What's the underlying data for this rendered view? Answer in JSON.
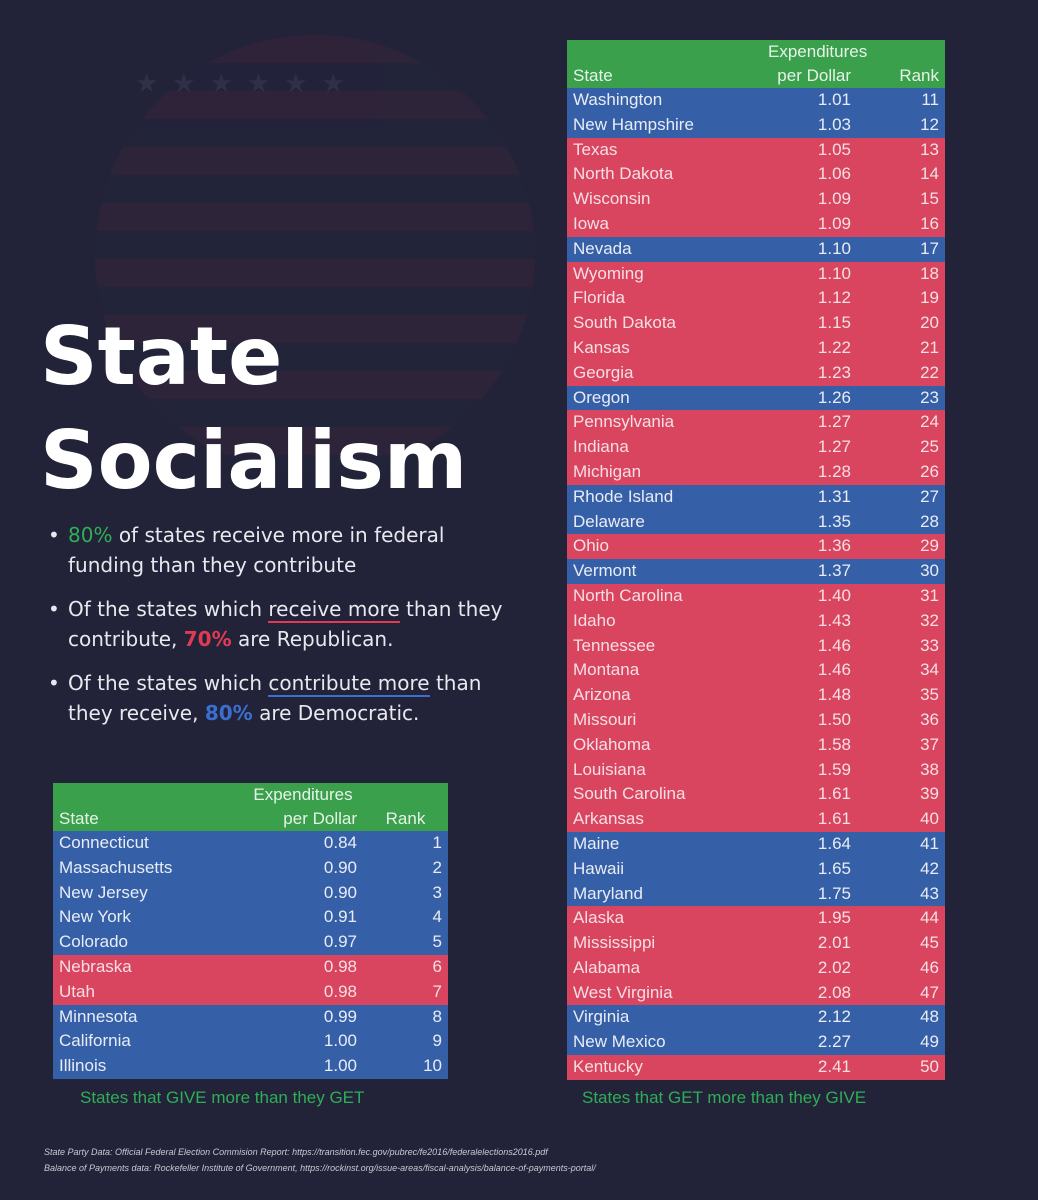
{
  "title_line1": "State",
  "title_line2": "Socialism",
  "bullets": {
    "b1_pct": "80%",
    "b1_text": "of states receive more in federal funding than they contribute",
    "b2_pre": "Of the states which",
    "b2_ul": "receive more",
    "b2_mid": "than they contribute,",
    "b2_pct": "70%",
    "b2_post": "are Republican.",
    "b3_pre": "Of the states which",
    "b3_ul": "contribute more",
    "b3_mid": "than they receive,",
    "b3_pct": "80%",
    "b3_post": "are Democratic."
  },
  "table_headers": {
    "state": "State",
    "exp_line1": "Expenditures",
    "exp_line2": "per Dollar",
    "rank": "Rank"
  },
  "give_caption": "States that GIVE more than they GET",
  "get_caption": "States that GET more than they GIVE",
  "colors": {
    "democrat": "#3560a8",
    "republican": "#d9445e",
    "header": "#3aa04c"
  },
  "give_states": [
    {
      "state": "Connecticut",
      "value": "0.84",
      "rank": "1",
      "party": "D"
    },
    {
      "state": "Massachusetts",
      "value": "0.90",
      "rank": "2",
      "party": "D"
    },
    {
      "state": "New Jersey",
      "value": "0.90",
      "rank": "3",
      "party": "D"
    },
    {
      "state": "New York",
      "value": "0.91",
      "rank": "4",
      "party": "D"
    },
    {
      "state": "Colorado",
      "value": "0.97",
      "rank": "5",
      "party": "D"
    },
    {
      "state": "Nebraska",
      "value": "0.98",
      "rank": "6",
      "party": "R"
    },
    {
      "state": "Utah",
      "value": "0.98",
      "rank": "7",
      "party": "R"
    },
    {
      "state": "Minnesota",
      "value": "0.99",
      "rank": "8",
      "party": "D"
    },
    {
      "state": "California",
      "value": "1.00",
      "rank": "9",
      "party": "D"
    },
    {
      "state": "Illinois",
      "value": "1.00",
      "rank": "10",
      "party": "D"
    }
  ],
  "get_states": [
    {
      "state": "Washington",
      "value": "1.01",
      "rank": "11",
      "party": "D"
    },
    {
      "state": "New Hampshire",
      "value": "1.03",
      "rank": "12",
      "party": "D"
    },
    {
      "state": "Texas",
      "value": "1.05",
      "rank": "13",
      "party": "R"
    },
    {
      "state": "North Dakota",
      "value": "1.06",
      "rank": "14",
      "party": "R"
    },
    {
      "state": "Wisconsin",
      "value": "1.09",
      "rank": "15",
      "party": "R"
    },
    {
      "state": "Iowa",
      "value": "1.09",
      "rank": "16",
      "party": "R"
    },
    {
      "state": "Nevada",
      "value": "1.10",
      "rank": "17",
      "party": "D"
    },
    {
      "state": "Wyoming",
      "value": "1.10",
      "rank": "18",
      "party": "R"
    },
    {
      "state": "Florida",
      "value": "1.12",
      "rank": "19",
      "party": "R"
    },
    {
      "state": "South Dakota",
      "value": "1.15",
      "rank": "20",
      "party": "R"
    },
    {
      "state": "Kansas",
      "value": "1.22",
      "rank": "21",
      "party": "R"
    },
    {
      "state": "Georgia",
      "value": "1.23",
      "rank": "22",
      "party": "R"
    },
    {
      "state": "Oregon",
      "value": "1.26",
      "rank": "23",
      "party": "D"
    },
    {
      "state": "Pennsylvania",
      "value": "1.27",
      "rank": "24",
      "party": "R"
    },
    {
      "state": "Indiana",
      "value": "1.27",
      "rank": "25",
      "party": "R"
    },
    {
      "state": "Michigan",
      "value": "1.28",
      "rank": "26",
      "party": "R"
    },
    {
      "state": "Rhode Island",
      "value": "1.31",
      "rank": "27",
      "party": "D"
    },
    {
      "state": "Delaware",
      "value": "1.35",
      "rank": "28",
      "party": "D"
    },
    {
      "state": "Ohio",
      "value": "1.36",
      "rank": "29",
      "party": "R"
    },
    {
      "state": "Vermont",
      "value": "1.37",
      "rank": "30",
      "party": "D"
    },
    {
      "state": "North Carolina",
      "value": "1.40",
      "rank": "31",
      "party": "R"
    },
    {
      "state": "Idaho",
      "value": "1.43",
      "rank": "32",
      "party": "R"
    },
    {
      "state": "Tennessee",
      "value": "1.46",
      "rank": "33",
      "party": "R"
    },
    {
      "state": "Montana",
      "value": "1.46",
      "rank": "34",
      "party": "R"
    },
    {
      "state": "Arizona",
      "value": "1.48",
      "rank": "35",
      "party": "R"
    },
    {
      "state": "Missouri",
      "value": "1.50",
      "rank": "36",
      "party": "R"
    },
    {
      "state": "Oklahoma",
      "value": "1.58",
      "rank": "37",
      "party": "R"
    },
    {
      "state": "Louisiana",
      "value": "1.59",
      "rank": "38",
      "party": "R"
    },
    {
      "state": "South Carolina",
      "value": "1.61",
      "rank": "39",
      "party": "R"
    },
    {
      "state": "Arkansas",
      "value": "1.61",
      "rank": "40",
      "party": "R"
    },
    {
      "state": "Maine",
      "value": "1.64",
      "rank": "41",
      "party": "D"
    },
    {
      "state": "Hawaii",
      "value": "1.65",
      "rank": "42",
      "party": "D"
    },
    {
      "state": "Maryland",
      "value": "1.75",
      "rank": "43",
      "party": "D"
    },
    {
      "state": "Alaska",
      "value": "1.95",
      "rank": "44",
      "party": "R"
    },
    {
      "state": "Mississippi",
      "value": "2.01",
      "rank": "45",
      "party": "R"
    },
    {
      "state": "Alabama",
      "value": "2.02",
      "rank": "46",
      "party": "R"
    },
    {
      "state": "West Virginia",
      "value": "2.08",
      "rank": "47",
      "party": "R"
    },
    {
      "state": "Virginia",
      "value": "2.12",
      "rank": "48",
      "party": "D"
    },
    {
      "state": "New Mexico",
      "value": "2.27",
      "rank": "49",
      "party": "D"
    },
    {
      "state": "Kentucky",
      "value": "2.41",
      "rank": "50",
      "party": "R"
    }
  ],
  "sources": {
    "line1": "State Party Data: Official Federal Election Commision Report: https://transition.fec.gov/pubrec/fe2016/federalelections2016.pdf",
    "line2": "Balance of Payments data: Rockefeller Institute of Government, https://rockinst.org/issue-areas/fiscal-analysis/balance-of-payments-portal/"
  }
}
